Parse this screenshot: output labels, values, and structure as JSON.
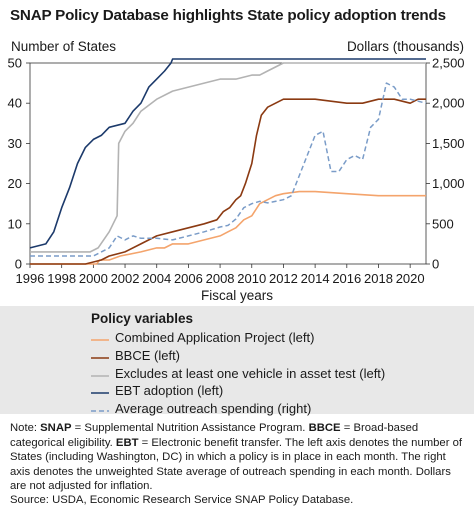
{
  "chart_data": {
    "type": "line",
    "title": "SNAP Policy Database highlights State policy adoption trends",
    "ylabel_left": "Number of States",
    "ylabel_right": "Dollars (thousands)",
    "xlabel": "Fiscal years",
    "xlim": [
      1996,
      2021
    ],
    "ylim_left": [
      0,
      50
    ],
    "ylim_right": [
      0,
      2500
    ],
    "x_ticks": [
      "1996",
      "1998",
      "2000",
      "2002",
      "2004",
      "2006",
      "2008",
      "2010",
      "2012",
      "2014",
      "2016",
      "2018",
      "2020"
    ],
    "y_ticks_left": [
      "0",
      "10",
      "20",
      "30",
      "40",
      "50"
    ],
    "y_ticks_right": [
      "0",
      "500",
      "1,000",
      "1,500",
      "2,000",
      "2,500"
    ],
    "legend_title": "Policy variables",
    "grid": false,
    "series": [
      {
        "name": "Combined Application Project (left)",
        "axis": "left",
        "color": "#f4a46c",
        "style": "solid",
        "x": [
          1996,
          2000.2,
          2000.4,
          2001.0,
          2001.7,
          2003.0,
          2004.0,
          2004.5,
          2005.0,
          2006.0,
          2007.0,
          2008.0,
          2008.5,
          2009.0,
          2009.5,
          2010.0,
          2010.5,
          2011.0,
          2011.5,
          2012.0,
          2013.0,
          2014.0,
          2016.0,
          2018.0,
          2021.0
        ],
        "values": [
          0,
          0,
          1,
          1,
          2,
          3,
          4,
          4,
          5,
          5,
          6,
          7,
          8,
          9,
          11,
          12,
          15,
          16,
          17,
          17.5,
          18,
          18,
          17.5,
          17,
          17
        ]
      },
      {
        "name": "BBCE (left)",
        "axis": "left",
        "color": "#8b3a12",
        "style": "solid",
        "x": [
          1996,
          1999.5,
          2000.5,
          2001.0,
          2002.0,
          2003.0,
          2004.0,
          2005.0,
          2006.0,
          2007.0,
          2007.8,
          2008.2,
          2008.6,
          2009.0,
          2009.3,
          2009.6,
          2010.0,
          2010.3,
          2010.6,
          2011.0,
          2011.5,
          2012.0,
          2014.0,
          2016.0,
          2017.0,
          2018.0,
          2019.0,
          2020.0,
          2020.5,
          2021.0
        ],
        "values": [
          0,
          0,
          1,
          2,
          3,
          5,
          7,
          8,
          9,
          10,
          11,
          13,
          14,
          16,
          17,
          20,
          25,
          32,
          37,
          39,
          40,
          41,
          41,
          40,
          40,
          41,
          41,
          40,
          41,
          41
        ]
      },
      {
        "name": "Excludes at least one vehicle in asset test (left)",
        "axis": "left",
        "color": "#b3b3b3",
        "style": "solid",
        "x": [
          1996,
          1999.8,
          2000.3,
          2001.0,
          2001.5,
          2001.6,
          2002.0,
          2002.5,
          2003.0,
          2004.0,
          2005.0,
          2006.0,
          2007.0,
          2008.0,
          2009.0,
          2010.0,
          2010.5,
          2011.0,
          2011.5,
          2012.0,
          2013.0,
          2021.0
        ],
        "values": [
          3,
          3,
          4,
          8,
          12,
          30,
          33,
          35,
          38,
          41,
          43,
          44,
          45,
          46,
          46,
          47,
          47,
          48,
          49,
          50,
          50,
          50
        ]
      },
      {
        "name": "EBT adoption (left)",
        "axis": "left",
        "color": "#1c3a6b",
        "style": "solid",
        "x": [
          1996,
          1997.0,
          1997.5,
          1998.0,
          1998.5,
          1999.0,
          1999.5,
          2000.0,
          2000.5,
          2001.0,
          2002.0,
          2002.5,
          2003.0,
          2003.5,
          2004.0,
          2004.5,
          2004.9,
          2005.0,
          2021.0
        ],
        "values": [
          4,
          5,
          8,
          14,
          19,
          25,
          29,
          31,
          32,
          34,
          35,
          38,
          40,
          44,
          46,
          48,
          50,
          51,
          51
        ]
      },
      {
        "name": "Average outreach spending (right)",
        "axis": "right",
        "color": "#7a9cc8",
        "style": "dashed",
        "x": [
          1996,
          2000.0,
          2001.0,
          2001.5,
          2002.0,
          2002.5,
          2003.0,
          2004.0,
          2005.0,
          2006.0,
          2007.0,
          2008.0,
          2008.5,
          2009.0,
          2009.5,
          2010.0,
          2010.5,
          2011.0,
          2012.0,
          2012.5,
          2013.0,
          2013.5,
          2014.0,
          2014.5,
          2015.0,
          2015.5,
          2016.0,
          2016.5,
          2017.0,
          2017.5,
          2018.0,
          2018.5,
          2019.0,
          2019.5,
          2020.0,
          2021.0
        ],
        "values": [
          100,
          100,
          200,
          350,
          300,
          350,
          320,
          320,
          300,
          350,
          400,
          460,
          480,
          560,
          700,
          750,
          780,
          760,
          800,
          850,
          1100,
          1350,
          1600,
          1650,
          1150,
          1150,
          1300,
          1350,
          1300,
          1700,
          1800,
          2250,
          2200,
          2050,
          2050,
          2000
        ]
      }
    ],
    "source_note": "Note: SNAP = Supplemental Nutrition Assistance Program. BBCE = Broad-based categorical eligibility. EBT = Electronic benefit transfer. The left axis denotes the number of States (including Washington, DC) in which a policy is in place in each month. The right axis denotes the unweighted State average of outreach spending in each month. Dollars are not adjusted for inflation."
  },
  "note": {
    "prefix": "Note: ",
    "t1": "SNAP",
    "t2": " = Supplemental Nutrition Assistance Program. ",
    "t3": "BBCE",
    "t4": " = Broad-based categorical eligibility. ",
    "t5": "EBT",
    "t6": " = Electronic benefit transfer. The left axis denotes the number of States (including Washington, DC) in which a policy is in place in each month. The right axis denotes the unweighted State average of outreach spending in each month. Dollars are not adjusted for inflation."
  },
  "source": "Source: USDA, Economic Research Service SNAP Policy Database."
}
